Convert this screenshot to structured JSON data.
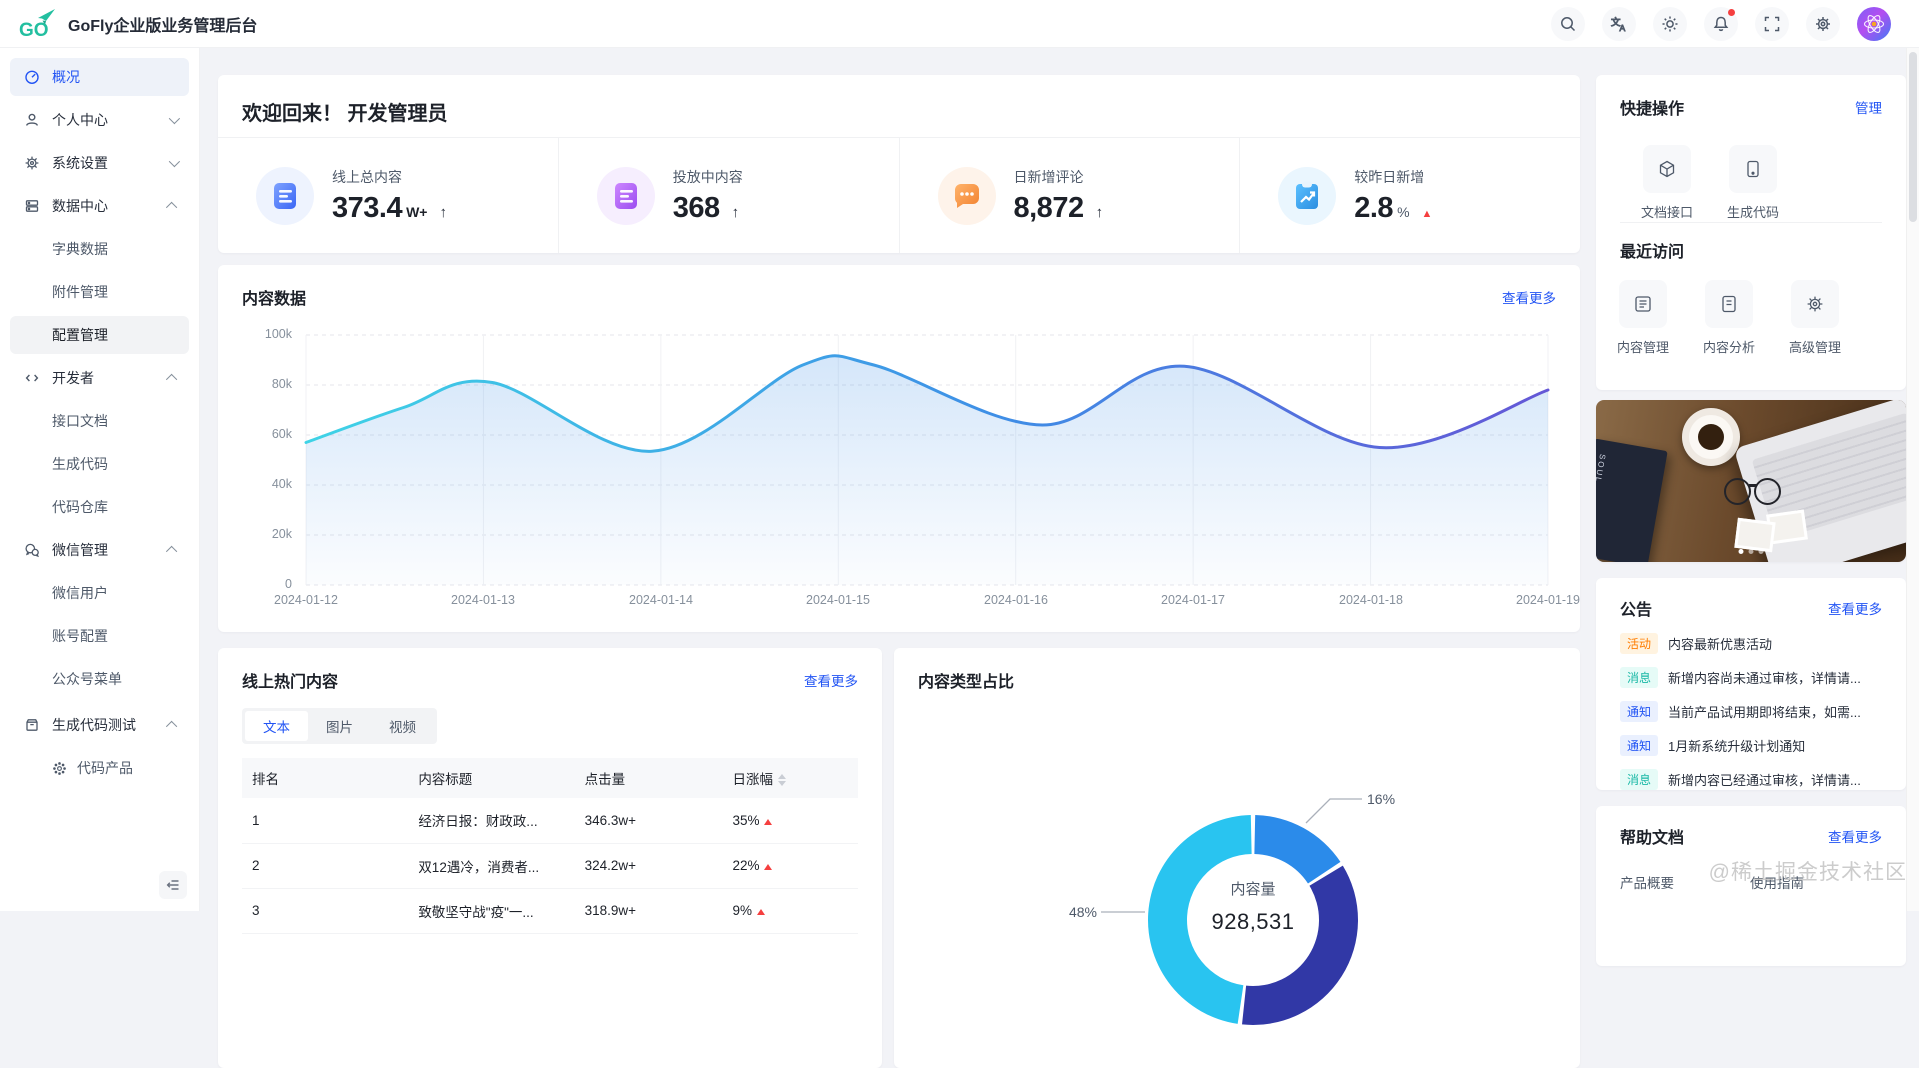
{
  "app": {
    "title": "GoFly企业版业务管理后台"
  },
  "header": {
    "icons": [
      "search-icon",
      "translate-icon",
      "theme-icon",
      "notification-icon",
      "fullscreen-icon",
      "settings-icon"
    ],
    "notification_dot": true
  },
  "sidebar": {
    "items": [
      {
        "label": "概况",
        "active": true
      },
      {
        "label": "个人中心",
        "expanded": false
      },
      {
        "label": "系统设置",
        "expanded": false
      },
      {
        "label": "数据中心",
        "expanded": true,
        "children": [
          "字典数据",
          "附件管理",
          "配置管理"
        ],
        "current_child": "配置管理"
      },
      {
        "label": "开发者",
        "expanded": true,
        "children": [
          "接口文档",
          "生成代码",
          "代码仓库"
        ]
      },
      {
        "label": "微信管理",
        "expanded": true,
        "children": [
          "微信用户",
          "账号配置",
          "公众号菜单"
        ]
      },
      {
        "label": "生成代码测试",
        "expanded": true,
        "children": [
          "代码产品"
        ]
      }
    ]
  },
  "welcome": {
    "title": "欢迎回来！ 开发管理员",
    "stats": [
      {
        "label": "线上总内容",
        "value": "373.4",
        "unit": "W+",
        "arrow": "↑"
      },
      {
        "label": "投放中内容",
        "value": "368",
        "unit": "",
        "arrow": "↑"
      },
      {
        "label": "日新增评论",
        "value": "8,872",
        "unit": "",
        "arrow": "↑"
      },
      {
        "label": "较昨日新增",
        "value": "2.8",
        "unit": "%",
        "arrow": "▲"
      }
    ]
  },
  "content_chart": {
    "title": "内容数据",
    "more": "查看更多"
  },
  "hot": {
    "title": "线上热门内容",
    "more": "查看更多",
    "tabs": [
      "文本",
      "图片",
      "视频"
    ],
    "active_tab": "文本",
    "columns": [
      "排名",
      "内容标题",
      "点击量",
      "日涨幅"
    ],
    "rows": [
      {
        "rank": "1",
        "title": "经济日报：财政政...",
        "clicks": "346.3w+",
        "rise": "35%"
      },
      {
        "rank": "2",
        "title": "双12遇冷，消费者...",
        "clicks": "324.2w+",
        "rise": "22%"
      },
      {
        "rank": "3",
        "title": "致敬坚守战\"疫\"一...",
        "clicks": "318.9w+",
        "rise": "9%"
      }
    ]
  },
  "type_chart": {
    "title": "内容类型占比"
  },
  "chart_data": [
    {
      "type": "area",
      "title": "内容数据",
      "x_labels": [
        "2024-01-12",
        "2024-01-13",
        "2024-01-14",
        "2024-01-15",
        "2024-01-16",
        "2024-01-17",
        "2024-01-18",
        "2024-01-19"
      ],
      "y_ticks": [
        "100k",
        "80k",
        "60k",
        "40k",
        "20k",
        "0"
      ],
      "ylim": [
        0,
        100000
      ],
      "grid": true,
      "points_k": [
        [
          0,
          57
        ],
        [
          0.55,
          71
        ],
        [
          1.05,
          81
        ],
        [
          1.95,
          53.5
        ],
        [
          2.8,
          88
        ],
        [
          3.2,
          88
        ],
        [
          4.15,
          64
        ],
        [
          4.95,
          87.5
        ],
        [
          6.05,
          55
        ],
        [
          7,
          78
        ]
      ],
      "line_colors": [
        "#3fd3e6",
        "#3e8fe6",
        "#6457d6"
      ]
    },
    {
      "type": "donut",
      "title": "内容类型占比",
      "slices": [
        {
          "label": "16%",
          "value": 16,
          "color": "#2b8bea"
        },
        {
          "label": "36%",
          "value": 36,
          "color": "#3138a6"
        },
        {
          "label": "48%",
          "value": 48,
          "color": "#29c4f0"
        }
      ],
      "center": {
        "label": "内容量",
        "value": "928,531"
      }
    }
  ],
  "quick": {
    "title": "快捷操作",
    "manage": "管理",
    "items": [
      "文档接口",
      "生成代码"
    ]
  },
  "recent": {
    "title": "最近访问",
    "items": [
      "内容管理",
      "内容分析",
      "高级管理"
    ]
  },
  "notice": {
    "title": "公告",
    "more": "查看更多",
    "items": [
      {
        "tag": "活动",
        "type": "activity",
        "text": "内容最新优惠活动"
      },
      {
        "tag": "消息",
        "type": "message",
        "text": "新增内容尚未通过审核，详情请..."
      },
      {
        "tag": "通知",
        "type": "notify",
        "text": "当前产品试用期即将结束，如需..."
      },
      {
        "tag": "通知",
        "type": "notify",
        "text": "1月新系统升级计划通知"
      },
      {
        "tag": "消息",
        "type": "message",
        "text": "新增内容已经通过审核，详情请..."
      }
    ]
  },
  "help": {
    "title": "帮助文档",
    "more": "查看更多",
    "items": [
      "产品概要",
      "使用指南"
    ]
  },
  "watermark": "@稀土掘金技术社区",
  "colors": {
    "accent": "#2254f4",
    "logo": "#23bfa0",
    "rise": "#f53f3f",
    "donut": [
      "#2b8bea",
      "#3138a6",
      "#29c4f0"
    ],
    "line": [
      "#3fd3e6",
      "#3e8fe6",
      "#6457d6"
    ]
  }
}
